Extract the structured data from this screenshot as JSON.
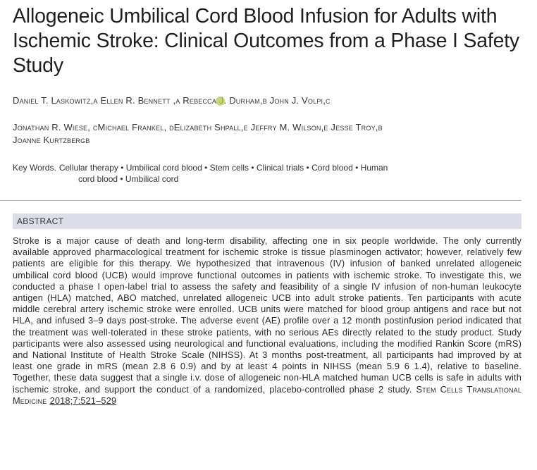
{
  "article": {
    "title": "Allogeneic Umbilical Cord Blood Infusion for Adults with Ischemic Stroke: Clinical Outcomes from a Phase I Safety Study",
    "authors_line1": "Daniel T. Laskowitz,a Ellen R. Bennett ,a Rebecca J. Durham,b John J. Volpi,c",
    "authors_line2": "Jonathan R. Wiese, cMichael Frankel, dElizabeth Shpall,e Jeffry M. Wilson,e Jesse Troy,b",
    "authors_line3": "Joanne Kurtzbergb",
    "keywords_label": "Key Words.",
    "keywords_line1": "Cellular therapy • Umbilical cord blood • Stem cells • Clinical trials • Cord blood • Human",
    "keywords_line2": "cord blood • Umbilical cord",
    "abstract_heading": "ABSTRACT",
    "abstract_text": "Stroke is a major cause of death and long-term disability, affecting one in six people worldwide. The only currently available approved pharmacological treatment for ischemic stroke is tissue plasminogen activator; however, relatively few patients are eligible for this therapy. We hypothesized that intravenous (IV) infusion of banked unrelated allogeneic umbilical cord blood (UCB) would improve functional outcomes in patients with ischemic stroke. To investigate this, we conducted a phase I open-label trial to assess the safety and feasibility of a single IV infusion of non-human leukocyte antigen (HLA) matched, ABO matched, unrelated allogeneic UCB into adult stroke patients. Ten participants with acute middle cerebral artery ischemic stroke were enrolled. UCB units were matched for blood group antigens and race but not HLA, and infused 3–9 days post-stroke. The adverse event (AE) profile over a 12 month postinfusion period indicated that the treatment was well-tolerated in these stroke patients, with no serious AEs directly related to the study product. Study participants were also assessed using neurological and functional evaluations, including the modified Rankin Score (mRS) and National Institute of Health Stroke Scale (NIHSS). At 3 months post-treatment, all participants had improved by at least one grade in mRS (mean 2.8 6 0.9) and by at least 4 points in NIHSS (mean 5.9 6 1.4), relative to baseline. Together, these data suggest that a single i.v. dose of allogeneic non-HLA matched human UCB cells is safe in adults with ischemic stroke, and support the conduct of a randomized, placebo-controlled phase 2 study.",
    "journal_name": "Stem Cells Translational Medicine",
    "citation": "2018;7:521–529"
  },
  "colors": {
    "abstract_heading_bg": "#dcdde8",
    "cursor_highlight": "#b9c94a",
    "rule": "#b8b8b8"
  }
}
